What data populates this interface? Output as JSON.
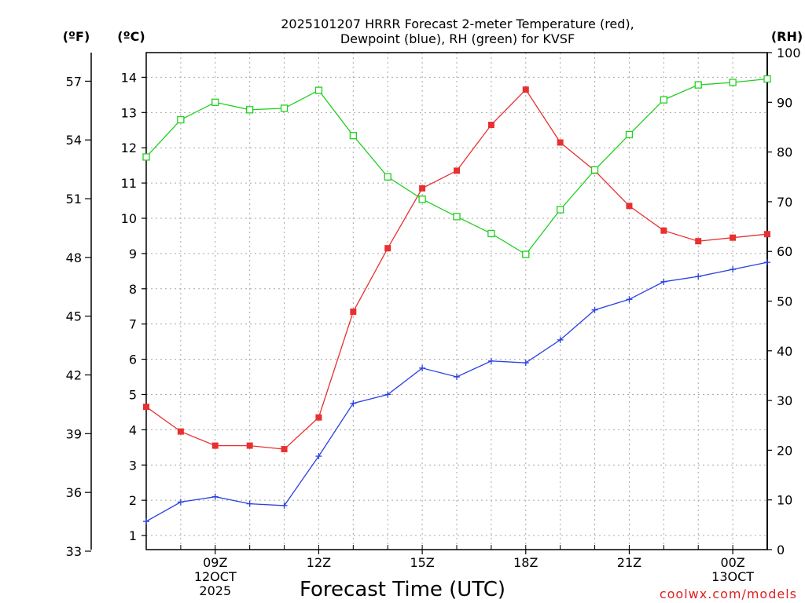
{
  "chart_data": {
    "type": "line",
    "title_line1": "2025101207 HRRR Forecast 2-meter Temperature (red),",
    "title_line2": "Dewpoint (blue), RH (green) for KVSF",
    "xlabel": "Forecast Time (UTC)",
    "credit": "coolwx.com/models",
    "unit_f": "(ºF)",
    "unit_c": "(ºC)",
    "unit_rh": "(RH)",
    "x_hours": [
      7,
      8,
      9,
      10,
      11,
      12,
      13,
      14,
      15,
      16,
      17,
      18,
      19,
      20,
      21,
      22,
      23,
      24,
      25
    ],
    "xlim": [
      7,
      25
    ],
    "x_ticks": [
      {
        "hour": 9,
        "lines": [
          "09Z",
          "12OCT",
          "2025"
        ]
      },
      {
        "hour": 12,
        "lines": [
          "12Z"
        ]
      },
      {
        "hour": 15,
        "lines": [
          "15Z"
        ]
      },
      {
        "hour": 18,
        "lines": [
          "18Z"
        ]
      },
      {
        "hour": 21,
        "lines": [
          "21Z"
        ]
      },
      {
        "hour": 24,
        "lines": [
          "00Z",
          "13OCT"
        ]
      }
    ],
    "ylim_c": [
      0.6,
      14.7
    ],
    "y_ticks_c": [
      1,
      2,
      3,
      4,
      5,
      6,
      7,
      8,
      9,
      10,
      11,
      12,
      13,
      14
    ],
    "y_ticks_f": [
      33,
      36,
      39,
      42,
      45,
      48,
      51,
      54,
      57
    ],
    "ylim_rh": [
      0,
      100
    ],
    "y_ticks_rh": [
      0,
      10,
      20,
      30,
      40,
      50,
      60,
      70,
      80,
      90,
      100
    ],
    "series": [
      {
        "name": "Temperature",
        "axis": "C",
        "color": "#e83030",
        "marker": "filled-square",
        "values": [
          4.65,
          3.95,
          3.55,
          3.55,
          3.45,
          4.35,
          7.35,
          9.15,
          10.85,
          11.35,
          12.65,
          13.65,
          12.15,
          11.35,
          10.35,
          9.65,
          9.35,
          9.45,
          9.55
        ]
      },
      {
        "name": "Dewpoint",
        "axis": "C",
        "color": "#2840e0",
        "marker": "plus",
        "values": [
          1.4,
          1.95,
          2.1,
          1.9,
          1.85,
          3.25,
          4.75,
          5.0,
          5.75,
          5.5,
          5.95,
          5.9,
          6.55,
          7.4,
          7.7,
          8.2,
          8.35,
          8.55,
          8.75
        ]
      },
      {
        "name": "RH",
        "axis": "RH",
        "color": "#20d020",
        "marker": "open-square",
        "values": [
          79,
          86.5,
          90,
          88.5,
          88.8,
          92.4,
          83.3,
          75,
          70.5,
          67,
          63.6,
          59.4,
          68.4,
          76.4,
          83.5,
          90.5,
          93.5,
          94,
          94.7
        ]
      }
    ]
  }
}
